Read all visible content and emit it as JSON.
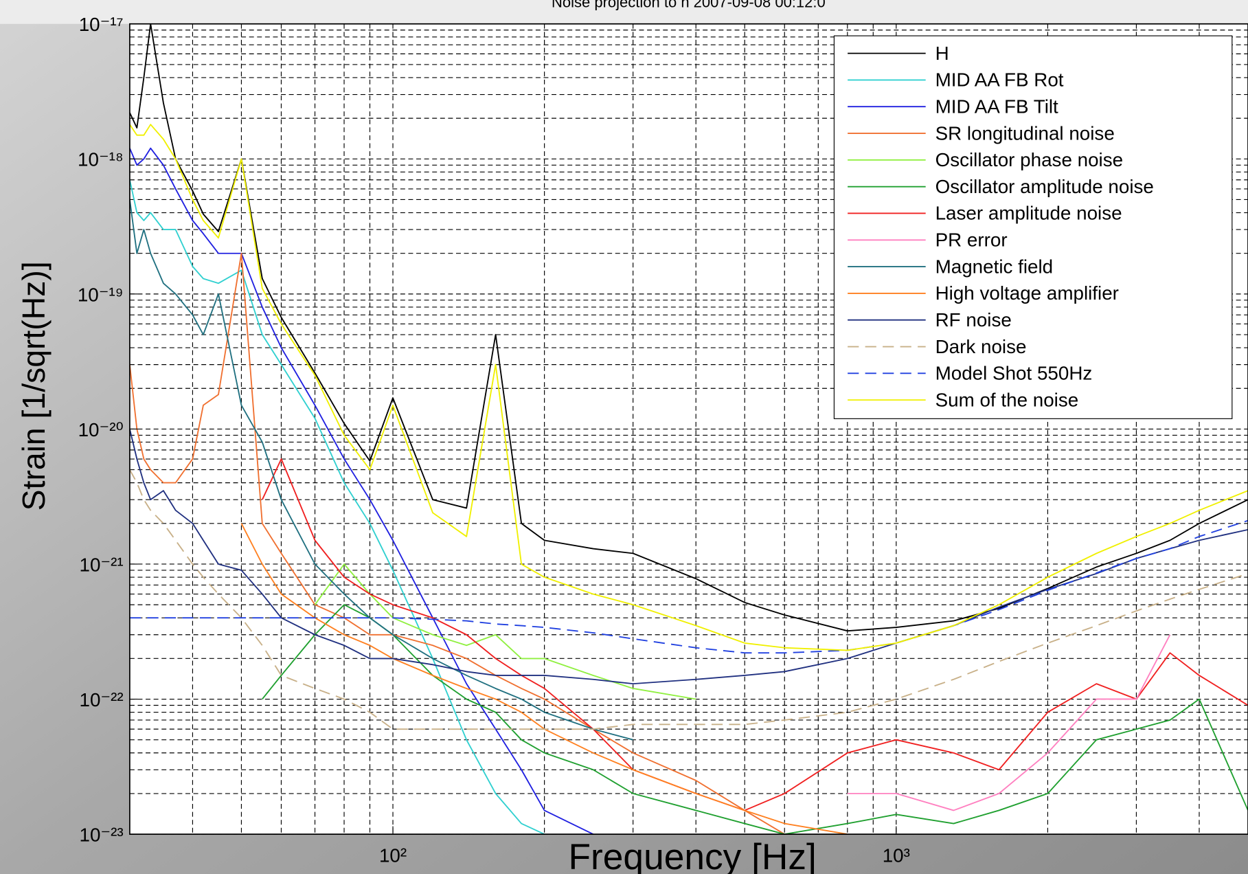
{
  "chart_data": {
    "type": "line",
    "title": "Noise projection to h 2007-09-08 00:12:0",
    "xlabel": "Frequency [Hz]",
    "ylabel": "Strain [1/sqrt(Hz)]",
    "xscale": "log",
    "yscale": "log",
    "grid": true,
    "legend": "upper right",
    "xlim": [
      30,
      5000
    ],
    "ylim": [
      1e-23,
      1e-17
    ],
    "xticks": [
      {
        "value": 100,
        "label": "10²"
      },
      {
        "value": 1000,
        "label": "10³"
      }
    ],
    "yticks": [
      {
        "value": 1e-23,
        "label": "10⁻²³"
      },
      {
        "value": 1e-22,
        "label": "10⁻²²"
      },
      {
        "value": 1e-21,
        "label": "10⁻²¹"
      },
      {
        "value": 1e-20,
        "label": "10⁻²⁰"
      },
      {
        "value": 1e-19,
        "label": "10⁻¹⁹"
      },
      {
        "value": 1e-18,
        "label": "10⁻¹⁸"
      },
      {
        "value": 1e-17,
        "label": "10⁻¹⁷"
      }
    ],
    "xminorgrid": [
      40,
      50,
      60,
      70,
      80,
      90,
      200,
      300,
      400,
      500,
      600,
      700,
      800,
      900,
      2000,
      3000,
      4000
    ],
    "yminorgrid": [
      2e-23,
      3e-23,
      4e-23,
      5e-23,
      6e-23,
      7e-23,
      8e-23,
      9e-23,
      2e-22,
      3e-22,
      4e-22,
      5e-22,
      6e-22,
      7e-22,
      8e-22,
      9e-22,
      2e-21,
      3e-21,
      4e-21,
      5e-21,
      6e-21,
      7e-21,
      8e-21,
      9e-21,
      2e-20,
      3e-20,
      4e-20,
      5e-20,
      6e-20,
      7e-20,
      8e-20,
      9e-20,
      2e-19,
      3e-19,
      4e-19,
      5e-19,
      6e-19,
      7e-19,
      8e-19,
      9e-19,
      2e-18,
      3e-18,
      4e-18,
      5e-18,
      6e-18,
      7e-18,
      8e-18,
      9e-18
    ],
    "x": [
      30,
      31,
      32,
      33,
      35,
      37,
      40,
      42,
      45,
      50,
      55,
      60,
      70,
      80,
      90,
      100,
      120,
      140,
      160,
      180,
      200,
      250,
      300,
      400,
      500,
      600,
      800,
      1000,
      1300,
      1600,
      2000,
      2500,
      3000,
      3500,
      4000,
      5000
    ],
    "series": [
      {
        "name": "H",
        "color": "#000000",
        "values": [
          2.2e-18,
          1.7e-18,
          4e-18,
          1e-17,
          2.6e-18,
          1e-18,
          5.8e-19,
          3.9e-19,
          2.9e-19,
          1e-18,
          1.3e-19,
          6.7e-20,
          2.6e-20,
          1.1e-20,
          5.8e-21,
          1.7e-20,
          3e-21,
          2.6e-21,
          5e-20,
          2e-21,
          1.5e-21,
          1.3e-21,
          1.2e-21,
          7.8e-22,
          5.2e-22,
          4.2e-22,
          3.2e-22,
          3.4e-22,
          3.8e-22,
          4.7e-22,
          6.6e-22,
          9.5e-22,
          1.2e-21,
          1.5e-21,
          2e-21,
          3e-21
        ]
      },
      {
        "name": "MID AA FB Rot",
        "color": "#30d0d0",
        "values": [
          7e-19,
          4e-19,
          3.5e-19,
          4e-19,
          3e-19,
          3e-19,
          1.6e-19,
          1.3e-19,
          1.2e-19,
          1.5e-19,
          5e-20,
          3e-20,
          1.2e-20,
          4e-21,
          2e-21,
          9e-22,
          2e-22,
          5e-23,
          2e-23,
          1.2e-23,
          1e-23,
          null,
          null,
          null,
          null,
          null,
          null,
          null,
          null,
          null,
          null,
          null,
          null,
          null,
          null,
          null
        ]
      },
      {
        "name": "MID AA FB Tilt",
        "color": "#2020e0",
        "values": [
          1.2e-18,
          9e-19,
          1e-18,
          1.2e-18,
          9e-19,
          6e-19,
          3.5e-19,
          2.8e-19,
          2e-19,
          2e-19,
          8e-20,
          4e-20,
          1.5e-20,
          6e-21,
          3e-21,
          1.5e-21,
          4e-22,
          1.3e-22,
          6e-23,
          3e-23,
          1.5e-23,
          1e-23,
          null,
          null,
          null,
          null,
          null,
          null,
          null,
          null,
          null,
          null,
          null,
          null,
          null,
          null
        ]
      },
      {
        "name": "SR longitudinal noise",
        "color": "#f07030",
        "values": [
          3e-20,
          1e-20,
          6e-21,
          5e-21,
          4e-21,
          4e-21,
          6e-21,
          1.5e-20,
          1.8e-20,
          2e-19,
          2e-21,
          1.2e-21,
          5e-22,
          4e-22,
          3e-22,
          3e-22,
          2.5e-22,
          2e-22,
          1.5e-22,
          1.2e-22,
          1e-22,
          6e-23,
          4e-23,
          2.5e-23,
          1.5e-23,
          1e-23,
          null,
          null,
          null,
          null,
          null,
          null,
          null,
          null,
          null,
          null
        ]
      },
      {
        "name": "Oscillator phase noise",
        "color": "#90f040",
        "values": [
          null,
          null,
          null,
          null,
          null,
          null,
          null,
          null,
          null,
          null,
          null,
          null,
          5e-22,
          1e-21,
          6e-22,
          4e-22,
          3e-22,
          2.5e-22,
          3e-22,
          2e-22,
          2e-22,
          1.5e-22,
          1.2e-22,
          1e-22,
          null,
          null,
          null,
          null,
          null,
          null,
          null,
          null,
          null,
          null,
          null,
          null
        ]
      },
      {
        "name": "Oscillator amplitude noise",
        "color": "#20a030",
        "values": [
          null,
          null,
          null,
          null,
          null,
          null,
          null,
          null,
          null,
          null,
          1e-22,
          1.5e-22,
          3e-22,
          5e-22,
          4e-22,
          3e-22,
          1.5e-22,
          1e-22,
          8e-23,
          5e-23,
          4e-23,
          3e-23,
          2e-23,
          1.5e-23,
          1.2e-23,
          1e-23,
          1.2e-23,
          1.4e-23,
          1.2e-23,
          1.5e-23,
          2e-23,
          5e-23,
          6e-23,
          7e-23,
          1e-22,
          1.5e-23
        ]
      },
      {
        "name": "Laser amplitude noise",
        "color": "#f02020",
        "values": [
          null,
          null,
          null,
          null,
          null,
          null,
          null,
          null,
          null,
          null,
          3e-21,
          6e-21,
          1.5e-21,
          8e-22,
          6e-22,
          5e-22,
          4e-22,
          3e-22,
          2e-22,
          1.5e-22,
          1.2e-22,
          6e-23,
          3e-23,
          2e-23,
          1.5e-23,
          2e-23,
          4e-23,
          5e-23,
          4e-23,
          3e-23,
          8e-23,
          1.3e-22,
          1e-22,
          2.2e-22,
          1.5e-22,
          9e-23
        ]
      },
      {
        "name": "PR error",
        "color": "#ff80c0",
        "values": [
          null,
          null,
          null,
          null,
          null,
          null,
          null,
          null,
          null,
          null,
          null,
          null,
          null,
          null,
          null,
          null,
          null,
          null,
          null,
          null,
          null,
          null,
          null,
          null,
          null,
          null,
          2e-23,
          2e-23,
          1.5e-23,
          2e-23,
          4e-23,
          1e-22,
          1e-22,
          3e-22,
          null,
          null
        ]
      },
      {
        "name": "Magnetic field",
        "color": "#207080",
        "values": [
          5e-19,
          2e-19,
          3e-19,
          2e-19,
          1.2e-19,
          1e-19,
          7e-20,
          5e-20,
          1e-19,
          1.5e-20,
          8e-21,
          3e-21,
          1e-21,
          6e-22,
          4e-22,
          3e-22,
          2e-22,
          1.5e-22,
          1.2e-22,
          1e-22,
          8e-23,
          6e-23,
          5e-23,
          null,
          null,
          null,
          null,
          null,
          null,
          null,
          null,
          null,
          null,
          null,
          null,
          null
        ]
      },
      {
        "name": "High voltage amplifier",
        "color": "#ff8020",
        "values": [
          null,
          null,
          null,
          null,
          null,
          null,
          null,
          null,
          null,
          2e-21,
          1e-21,
          6e-22,
          4e-22,
          3e-22,
          2.5e-22,
          2e-22,
          1.5e-22,
          1.2e-22,
          1e-22,
          8e-23,
          6e-23,
          4e-23,
          3e-23,
          2e-23,
          1.5e-23,
          1.2e-23,
          1e-23,
          null,
          null,
          null,
          null,
          null,
          null,
          null,
          null,
          null
        ]
      },
      {
        "name": "RF noise",
        "color": "#203080",
        "values": [
          1e-20,
          6e-21,
          4e-21,
          3e-21,
          3.5e-21,
          2.5e-21,
          2e-21,
          1.5e-21,
          1e-21,
          9e-22,
          6e-22,
          4e-22,
          3e-22,
          2.5e-22,
          2e-22,
          2e-22,
          1.8e-22,
          1.6e-22,
          1.5e-22,
          1.5e-22,
          1.5e-22,
          1.4e-22,
          1.3e-22,
          1.4e-22,
          1.5e-22,
          1.6e-22,
          2e-22,
          2.6e-22,
          3.5e-22,
          4.8e-22,
          6.5e-22,
          8.5e-22,
          1.1e-21,
          1.3e-21,
          1.5e-21,
          1.8e-21
        ]
      },
      {
        "name": "Dark noise",
        "color": "#c8b088",
        "linestyle": "--",
        "values": [
          5e-21,
          4e-21,
          3e-21,
          2.5e-21,
          2e-21,
          1.5e-21,
          1e-21,
          8e-22,
          6e-22,
          4e-22,
          2.5e-22,
          1.5e-22,
          1.2e-22,
          1e-22,
          8e-23,
          6e-23,
          6e-23,
          6e-23,
          6e-23,
          6e-23,
          6e-23,
          6e-23,
          6.5e-23,
          6.5e-23,
          6.5e-23,
          7e-23,
          8e-23,
          1e-22,
          1.4e-22,
          1.9e-22,
          2.6e-22,
          3.5e-22,
          4.5e-22,
          5.5e-22,
          6.5e-22,
          8.5e-22
        ]
      },
      {
        "name": "Model Shot 550Hz",
        "color": "#2040e0",
        "linestyle": "--",
        "values": [
          4e-22,
          4e-22,
          4e-22,
          4e-22,
          4e-22,
          4e-22,
          4e-22,
          4e-22,
          4e-22,
          4e-22,
          4e-22,
          4e-22,
          4e-22,
          4e-22,
          4e-22,
          4e-22,
          3.9e-22,
          3.8e-22,
          3.6e-22,
          3.5e-22,
          3.4e-22,
          3.1e-22,
          2.8e-22,
          2.4e-22,
          2.2e-22,
          2.2e-22,
          2.3e-22,
          2.6e-22,
          3.5e-22,
          4.6e-22,
          6.4e-22,
          8.6e-22,
          1.1e-21,
          1.3e-21,
          1.6e-21,
          2.1e-21
        ]
      },
      {
        "name": "Sum of the noise",
        "color": "#f0f000",
        "values": [
          1.8e-18,
          1.5e-18,
          1.5e-18,
          1.8e-18,
          1.4e-18,
          1e-18,
          5e-19,
          3.5e-19,
          2.6e-19,
          1e-18,
          1.1e-19,
          6e-20,
          2.5e-20,
          9e-21,
          5e-21,
          1.5e-20,
          2.4e-21,
          1.6e-21,
          3e-20,
          1e-21,
          8e-22,
          6e-22,
          5e-22,
          3.5e-22,
          2.6e-22,
          2.4e-22,
          2.3e-22,
          2.6e-22,
          3.5e-22,
          5e-22,
          8e-22,
          1.2e-21,
          1.6e-21,
          2e-21,
          2.5e-21,
          3.5e-21
        ]
      }
    ]
  }
}
